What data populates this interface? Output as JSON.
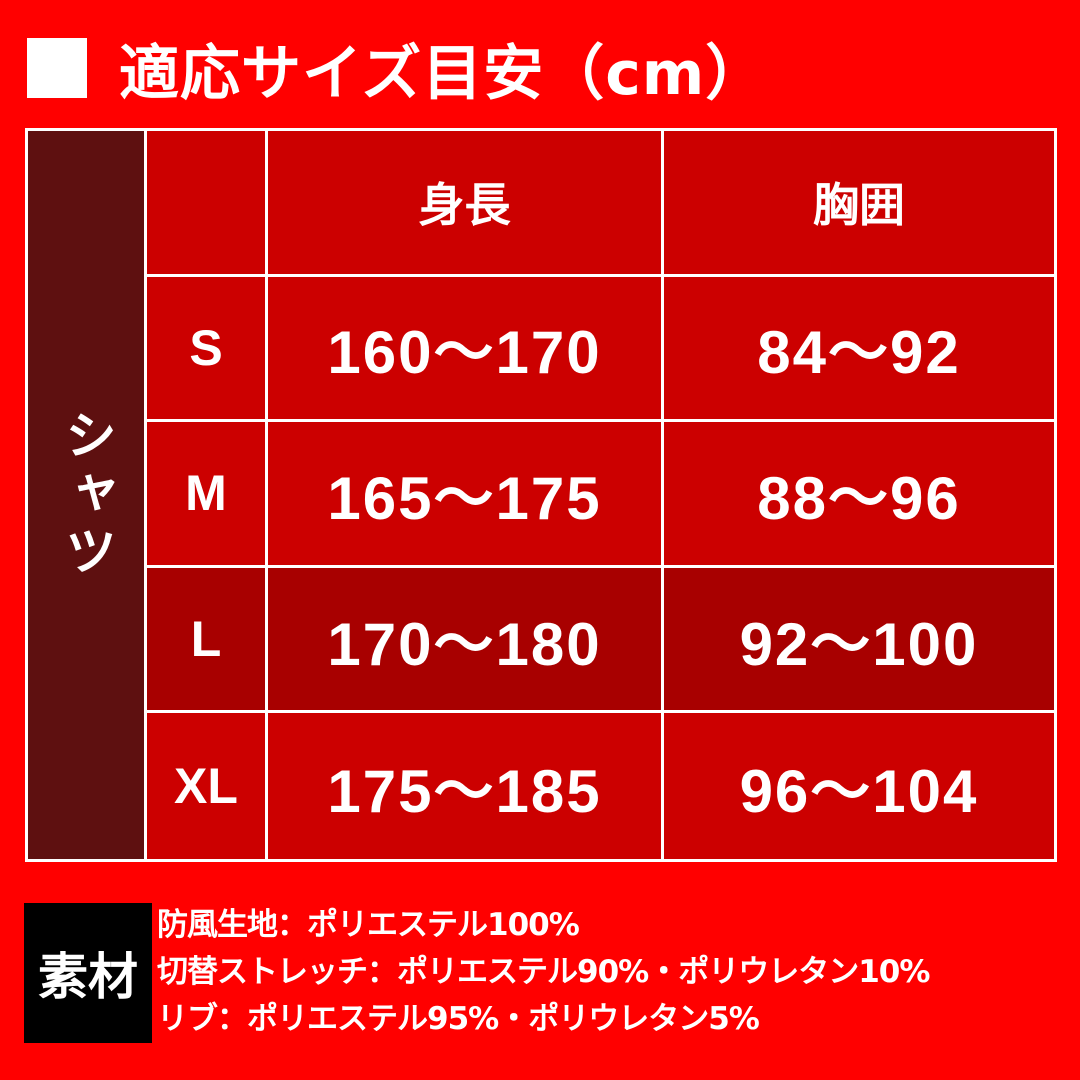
{
  "title": "適応サイズ目安（cm）",
  "table": {
    "group_label": "シャツ",
    "headers": [
      "",
      "身長",
      "胸囲"
    ],
    "rows": [
      {
        "size": "S",
        "height": "160～170",
        "chest": "84～92"
      },
      {
        "size": "M",
        "height": "165～175",
        "chest": "88～96"
      },
      {
        "size": "L",
        "height": "170～180",
        "chest": "92～100"
      },
      {
        "size": "XL",
        "height": "175～185",
        "chest": "96～104"
      }
    ]
  },
  "materials": {
    "label": "素材",
    "lines": [
      "防風生地：ポリエステル100%",
      "切替ストレッチ：ポリエステル90%・ポリウレタン10%",
      "リブ：ポリエステル95%・ポリウレタン5%"
    ]
  },
  "colors": {
    "background": "#ff0000",
    "cell": "#cc0000",
    "highlight_row": "#a80000",
    "side": "#5e1010"
  }
}
